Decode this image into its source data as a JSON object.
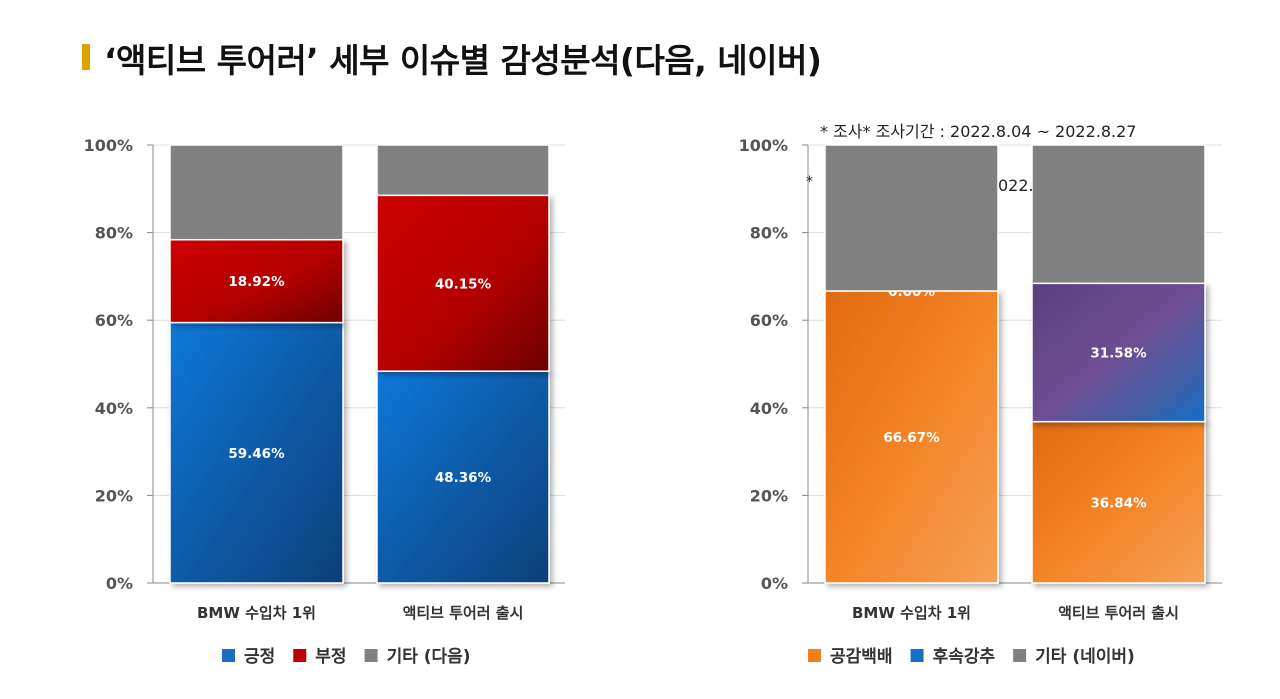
{
  "page": {
    "title": "‘액티브 투어러’ 세부 이슈별 감성분석(다음, 네이버)",
    "note_top": "* 조사* 조사기간 : 2022.8.04 ~ 2022.8.27",
    "note_overlap_star": "*",
    "note_overlap_text": "022."
  },
  "colors": {
    "positive": "#1a6fc4",
    "negative": "#c00000",
    "other": "#808080",
    "empathy": "#f07f1e",
    "followup_purple": "#6a4a8a",
    "title_bar": "#d9a300"
  },
  "chart_data": [
    {
      "type": "bar",
      "stacked": true,
      "categories": [
        "BMW 수입차 1위",
        "액티브 투어러 출시"
      ],
      "y_ticks": [
        "0%",
        "20%",
        "40%",
        "60%",
        "80%",
        "100%"
      ],
      "ylim": [
        0,
        100
      ],
      "series": [
        {
          "name": "긍정",
          "values": [
            59.46,
            48.36
          ],
          "labels": [
            "59.46%",
            "48.36%"
          ]
        },
        {
          "name": "부정",
          "values": [
            18.92,
            40.15
          ],
          "labels": [
            "18.92%",
            "40.15%"
          ]
        },
        {
          "name": "기타 (다음)",
          "values": [
            21.62,
            11.49
          ],
          "labels": [
            "",
            ""
          ]
        }
      ],
      "legend_position": "bottom"
    },
    {
      "type": "bar",
      "stacked": true,
      "categories": [
        "BMW 수입차 1위",
        "액티브 투어러 출시"
      ],
      "y_ticks": [
        "0%",
        "20%",
        "40%",
        "60%",
        "80%",
        "100%"
      ],
      "ylim": [
        0,
        100
      ],
      "series": [
        {
          "name": "공감백배",
          "values": [
            66.67,
            36.84
          ],
          "labels": [
            "66.67%",
            "36.84%"
          ]
        },
        {
          "name": "후속강추",
          "values": [
            0.0,
            31.58
          ],
          "labels": [
            "0.00%",
            "31.58%"
          ]
        },
        {
          "name": "기타 (네이버)",
          "values": [
            33.33,
            31.58
          ],
          "labels": [
            "",
            ""
          ]
        }
      ],
      "legend_position": "bottom"
    }
  ]
}
